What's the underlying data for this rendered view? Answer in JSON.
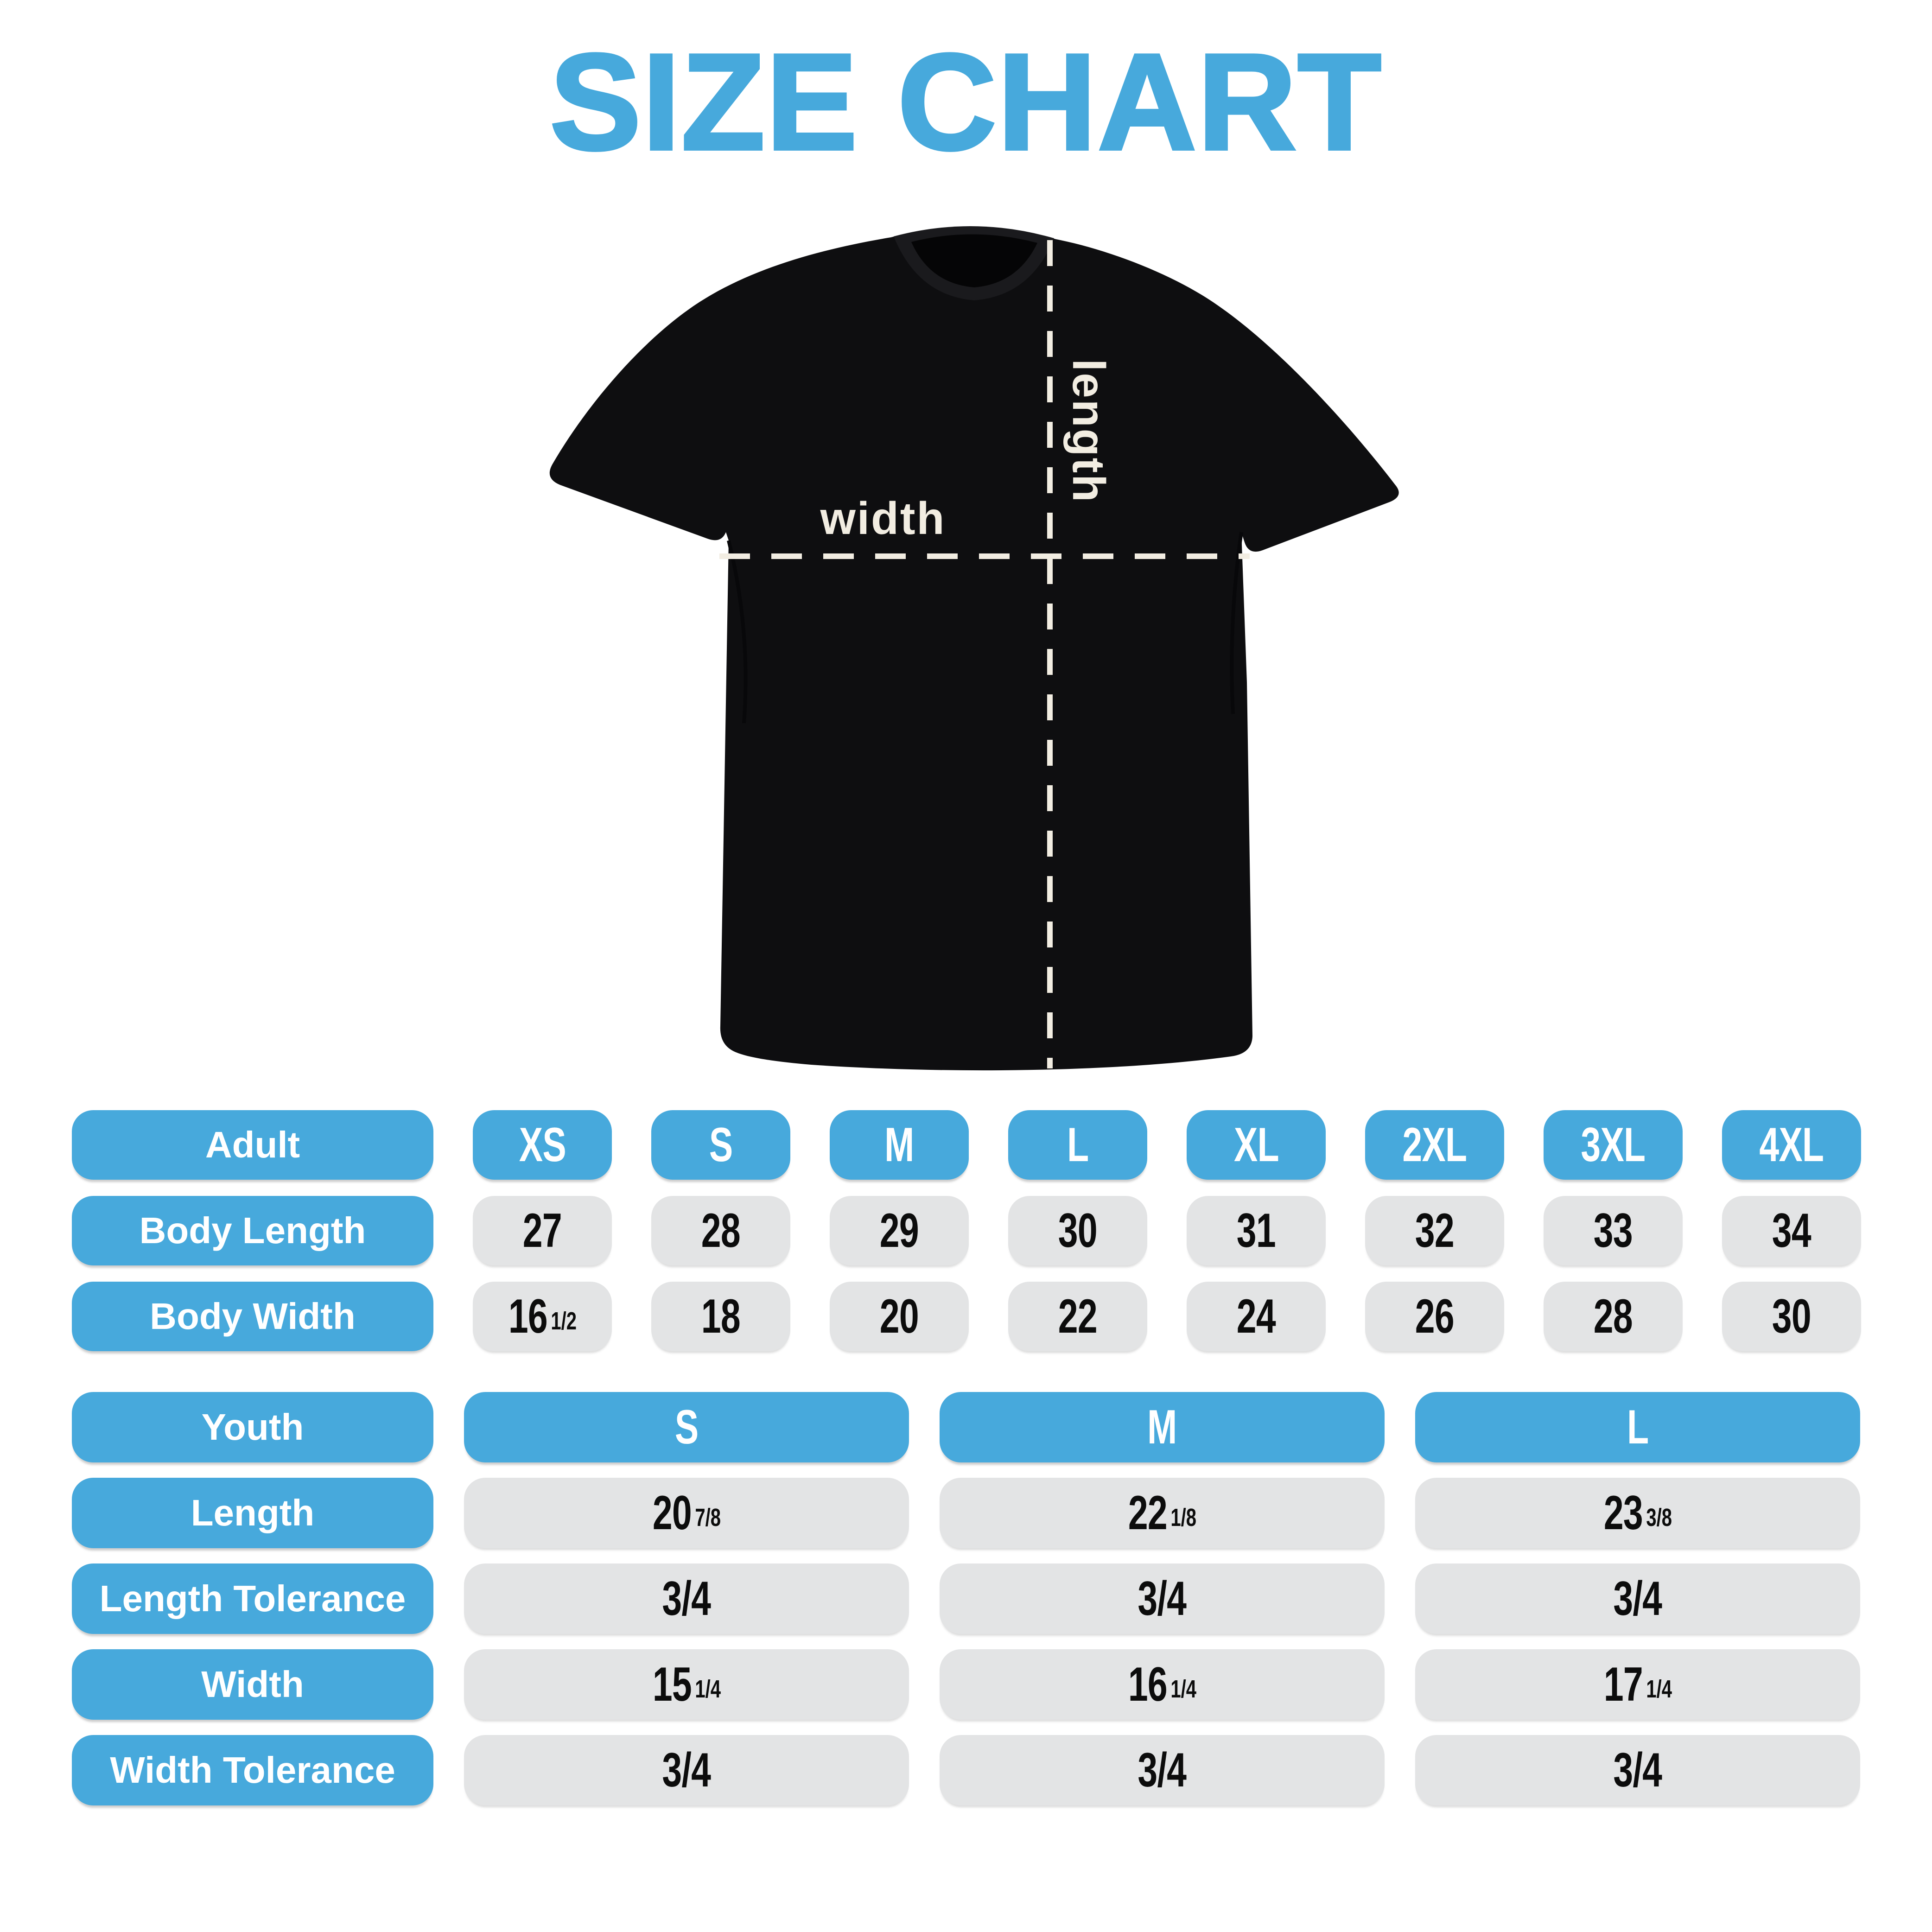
{
  "title": "SIZE CHART",
  "colors": {
    "accent_blue": "#47A9DC",
    "pill_gray": "#E3E4E5",
    "shirt_black": "#0E0E10",
    "measure_cream": "#F2EDE2",
    "text_black": "#0C0C0C",
    "text_white": "#FFFFFF"
  },
  "diagram": {
    "width_label": "width",
    "length_label": "length"
  },
  "adult_table": {
    "label": "Adult",
    "sizes": [
      "XS",
      "S",
      "M",
      "L",
      "XL",
      "2XL",
      "3XL",
      "4XL"
    ],
    "rows": [
      {
        "label": "Body Length",
        "values": [
          {
            "v": "27"
          },
          {
            "v": "28"
          },
          {
            "v": "29"
          },
          {
            "v": "30"
          },
          {
            "v": "31"
          },
          {
            "v": "32"
          },
          {
            "v": "33"
          },
          {
            "v": "34"
          }
        ]
      },
      {
        "label": "Body Width",
        "values": [
          {
            "v": "16",
            "f": "1/2"
          },
          {
            "v": "18"
          },
          {
            "v": "20"
          },
          {
            "v": "22"
          },
          {
            "v": "24"
          },
          {
            "v": "26"
          },
          {
            "v": "28"
          },
          {
            "v": "30"
          }
        ]
      }
    ]
  },
  "youth_table": {
    "label": "Youth",
    "sizes": [
      "S",
      "M",
      "L"
    ],
    "rows": [
      {
        "label": "Length",
        "values": [
          {
            "v": "20",
            "f": "7/8"
          },
          {
            "v": "22",
            "f": "1/8"
          },
          {
            "v": "23",
            "f": "3/8"
          }
        ]
      },
      {
        "label": "Length Tolerance",
        "values": [
          {
            "v": "3/4"
          },
          {
            "v": "3/4"
          },
          {
            "v": "3/4"
          }
        ]
      },
      {
        "label": "Width",
        "values": [
          {
            "v": "15",
            "f": "1/4"
          },
          {
            "v": "16",
            "f": "1/4"
          },
          {
            "v": "17",
            "f": "1/4"
          }
        ]
      },
      {
        "label": "Width Tolerance",
        "values": [
          {
            "v": "3/4"
          },
          {
            "v": "3/4"
          },
          {
            "v": "3/4"
          }
        ]
      }
    ]
  }
}
